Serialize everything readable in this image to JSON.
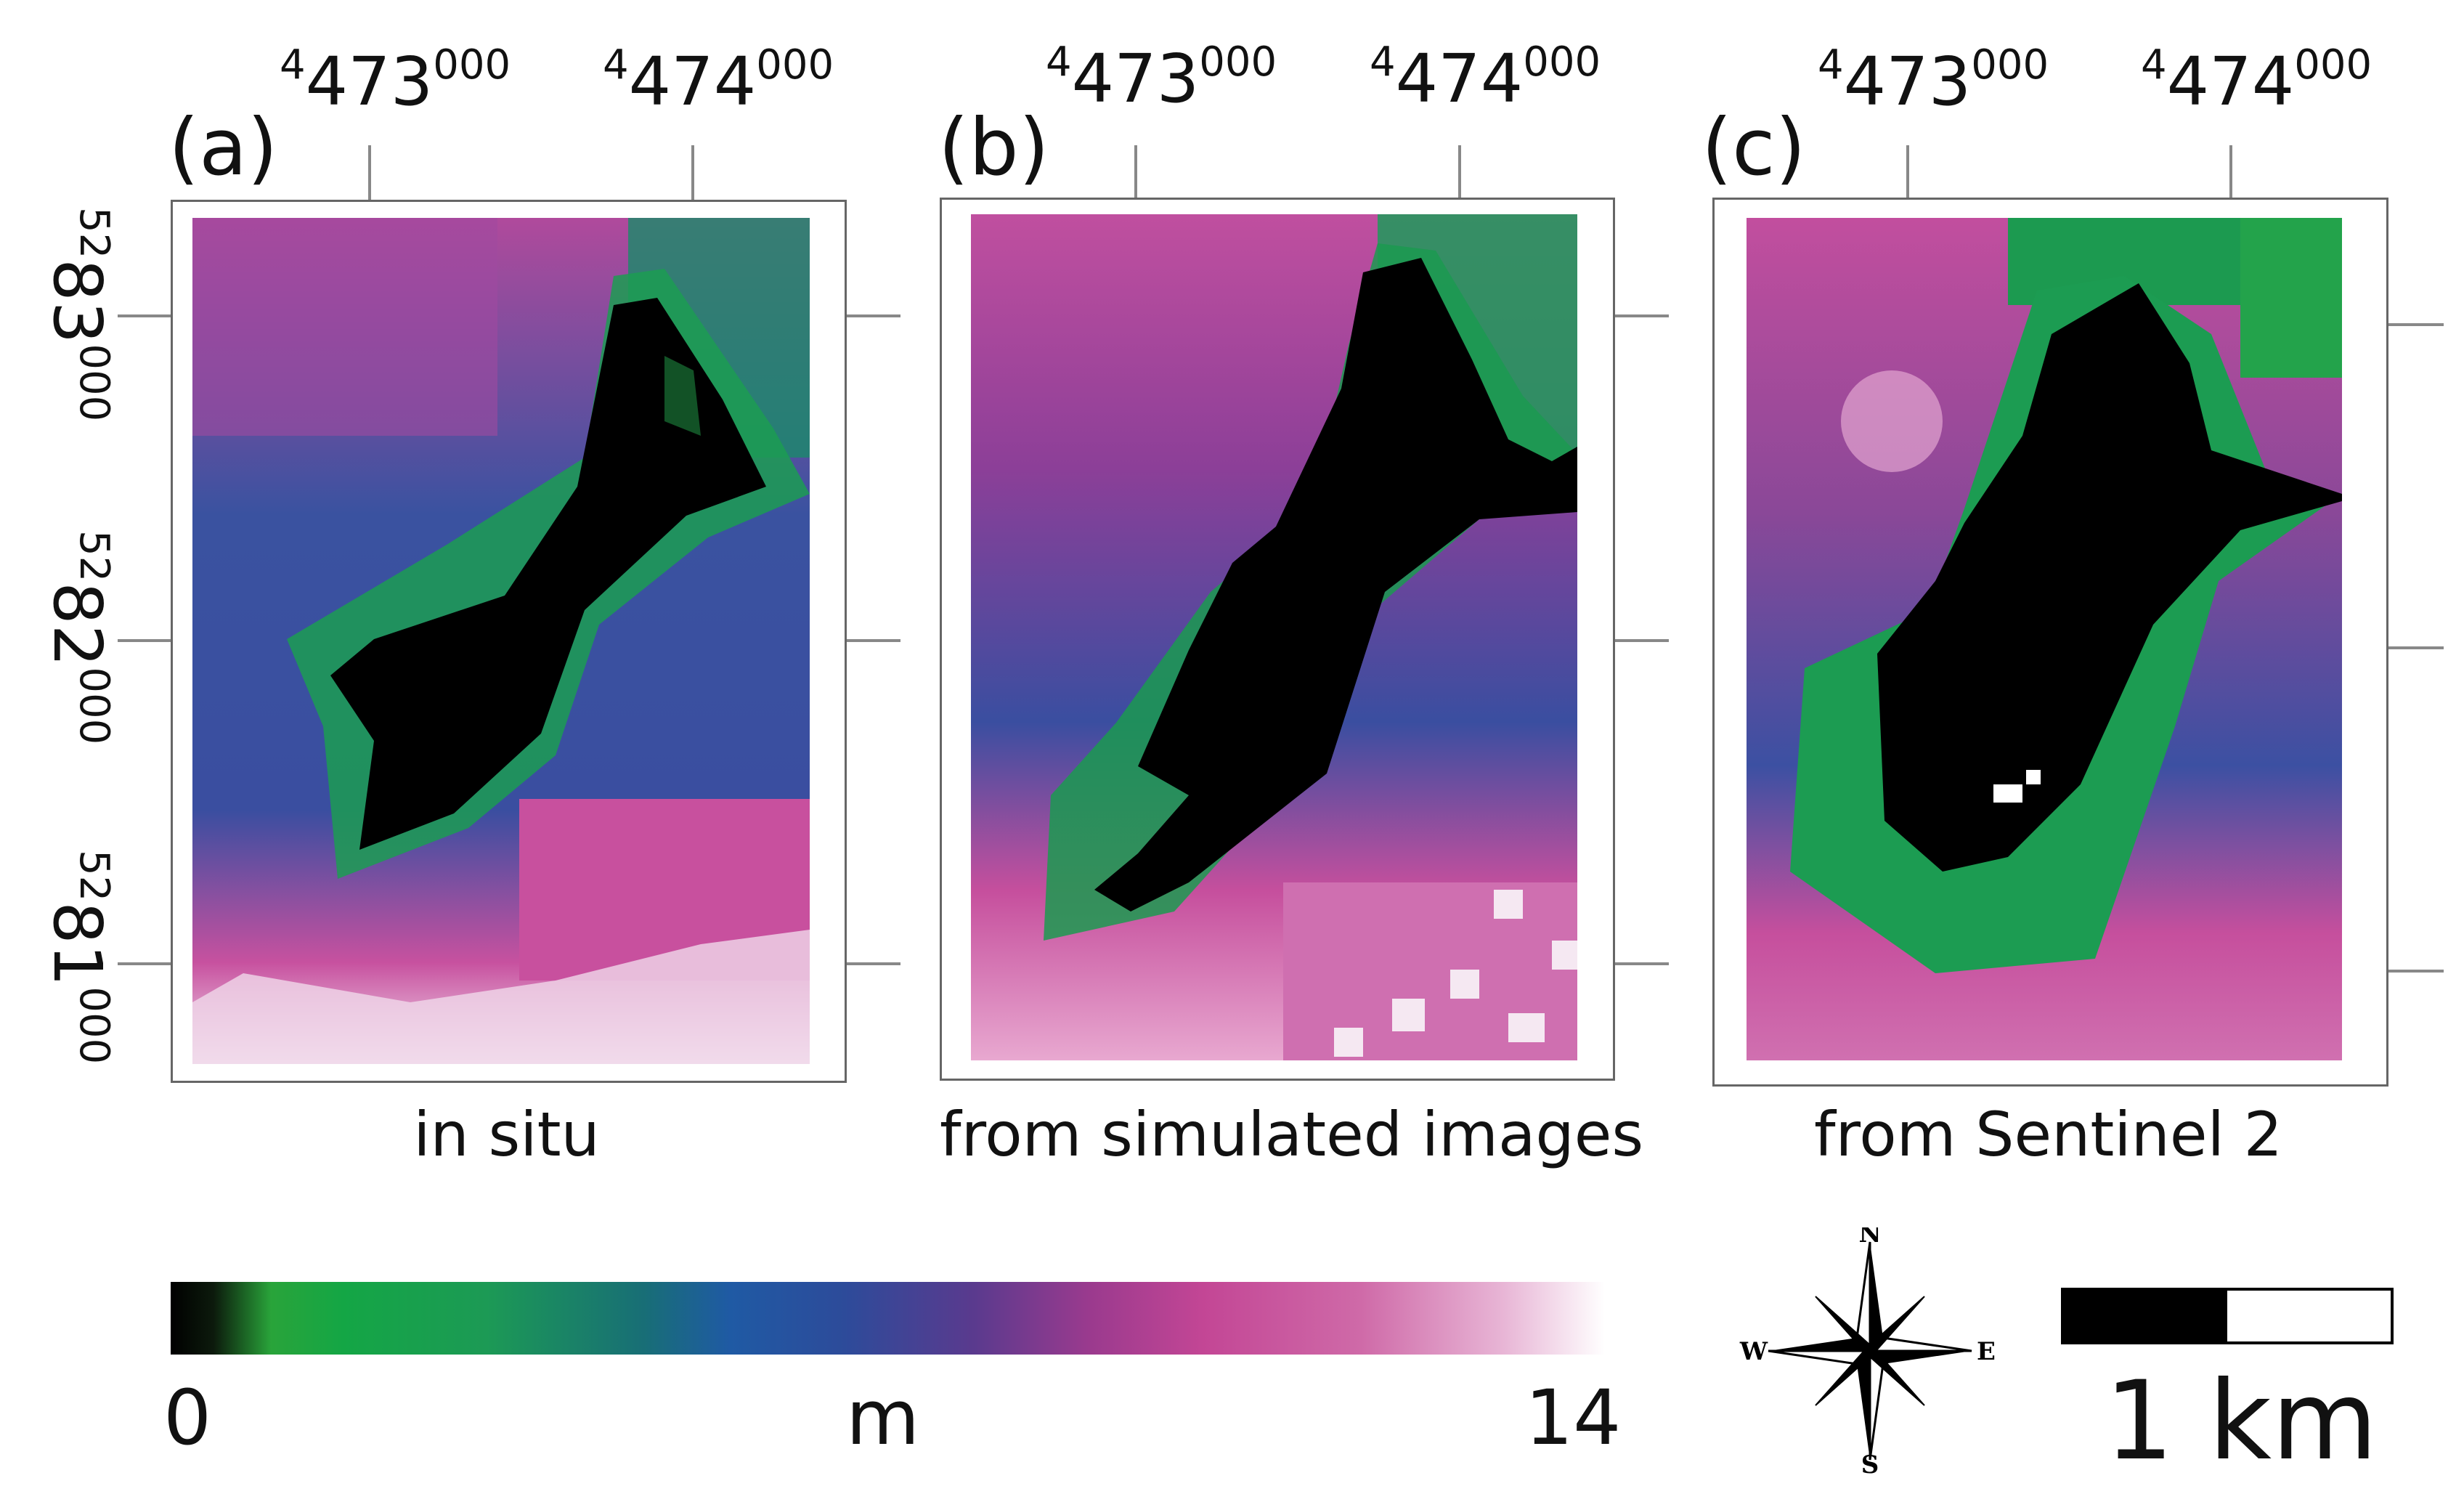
{
  "panels": [
    {
      "letter": "(a)",
      "caption": "in situ"
    },
    {
      "letter": "(b)",
      "caption": "from simulated images"
    },
    {
      "letter": "(c)",
      "caption": "from Sentinel 2"
    }
  ],
  "x_ticks": [
    {
      "main": "473",
      "sup": "000",
      "prefix": "4"
    },
    {
      "main": "474",
      "sup": "000",
      "prefix": "4"
    }
  ],
  "y_ticks": [
    {
      "prefix": "52",
      "main": "83",
      "sup": "000"
    },
    {
      "prefix": "52",
      "main": "82",
      "sup": "000"
    },
    {
      "prefix": "52",
      "main": "81",
      "sup": "000"
    }
  ],
  "colorbar": {
    "min": "0",
    "unit": "m",
    "max": "14"
  },
  "compass": {
    "n": "N",
    "s": "S",
    "e": "E",
    "w": "W"
  },
  "scale": {
    "label": "1 km",
    "value_km": 1
  },
  "colors": {
    "water": "#000000",
    "shallow": "#1fa64a",
    "mid": "#2a50a0",
    "deep": "#c34695",
    "max": "#ffffff"
  }
}
